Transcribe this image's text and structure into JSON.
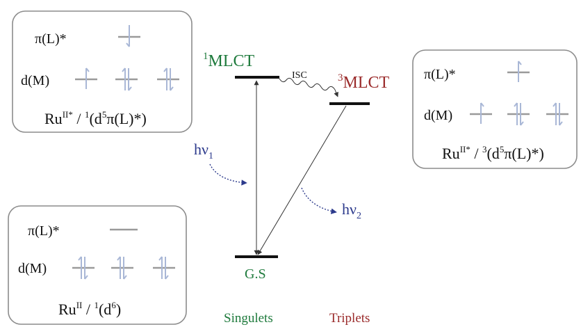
{
  "colors": {
    "singlet_green": "#1e7a3c",
    "triplet_red": "#9a2a2a",
    "photon_blue": "#2c3a8c",
    "box_border": "#8c8c8c"
  },
  "boxes": {
    "singlet_excited": {
      "orbital_pi": "π(L)*",
      "orbital_d": "d(M)",
      "label_main": "Ru",
      "label_sup_ox": "II*",
      "label_mid": " / ",
      "label_sup_mult": "1",
      "label_config_a": "(d",
      "label_sup_e": "5",
      "label_config_b": "π(L)*)"
    },
    "triplet_excited": {
      "orbital_pi": "π(L)*",
      "orbital_d": "d(M)",
      "label_main": "Ru",
      "label_sup_ox": "II*",
      "label_mid": " / ",
      "label_sup_mult": "3",
      "label_config_a": "(d",
      "label_sup_e": "5",
      "label_config_b": "π(L)*)"
    },
    "ground": {
      "orbital_pi": "π(L)*",
      "orbital_d": "d(M)",
      "label_main": "Ru",
      "label_sup_ox": "II",
      "label_mid": " / ",
      "label_sup_mult": "1",
      "label_config_a": "(d",
      "label_sup_e": "6",
      "label_config_b": ")"
    }
  },
  "states": {
    "singlet_mlct_sup": "1",
    "singlet_mlct": "MLCT",
    "triplet_mlct_sup": "3",
    "triplet_mlct": "MLCT",
    "ground": "G.S",
    "isc": "ISC"
  },
  "photons": {
    "absorption": "hν",
    "absorption_sub": "1",
    "emission": "hν",
    "emission_sub": "2"
  },
  "columns": {
    "singlets": "Singulets",
    "triplets": "Triplets"
  }
}
